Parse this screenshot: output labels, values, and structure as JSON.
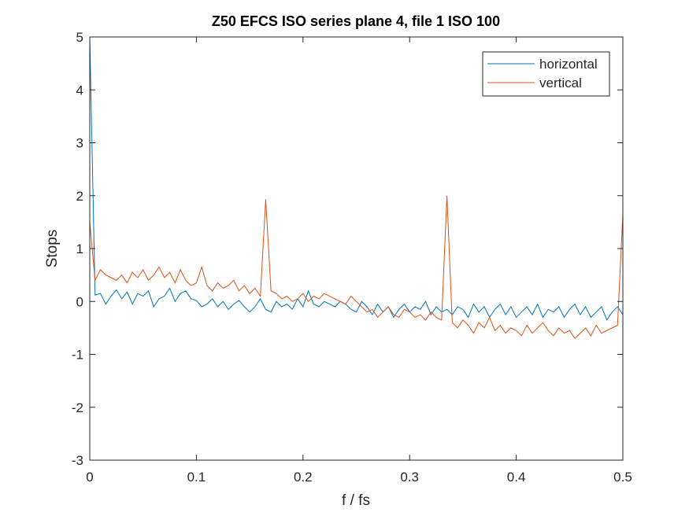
{
  "chart_data": {
    "type": "line",
    "title": "Z50 EFCS ISO series plane 4, file 1 ISO 100",
    "xlabel": "f / fs",
    "ylabel": "Stops",
    "xlim": [
      0,
      0.5
    ],
    "ylim": [
      -3,
      5
    ],
    "xticks": [
      0,
      0.1,
      0.2,
      0.3,
      0.4,
      0.5
    ],
    "yticks": [
      -3,
      -2,
      -1,
      0,
      1,
      2,
      3,
      4,
      5
    ],
    "grid": false,
    "legend": "northeast",
    "x": [
      0,
      0.005,
      0.01,
      0.015,
      0.02,
      0.025,
      0.03,
      0.035,
      0.04,
      0.045,
      0.05,
      0.055,
      0.06,
      0.065,
      0.07,
      0.075,
      0.08,
      0.085,
      0.09,
      0.095,
      0.1,
      0.105,
      0.11,
      0.115,
      0.12,
      0.125,
      0.13,
      0.135,
      0.14,
      0.145,
      0.15,
      0.155,
      0.16,
      0.165,
      0.17,
      0.175,
      0.18,
      0.185,
      0.19,
      0.195,
      0.2,
      0.205,
      0.21,
      0.215,
      0.22,
      0.225,
      0.23,
      0.235,
      0.24,
      0.245,
      0.25,
      0.255,
      0.26,
      0.265,
      0.27,
      0.275,
      0.28,
      0.285,
      0.29,
      0.295,
      0.3,
      0.305,
      0.31,
      0.315,
      0.32,
      0.325,
      0.33,
      0.335,
      0.34,
      0.345,
      0.35,
      0.355,
      0.36,
      0.365,
      0.37,
      0.375,
      0.38,
      0.385,
      0.39,
      0.395,
      0.4,
      0.405,
      0.41,
      0.415,
      0.42,
      0.425,
      0.43,
      0.435,
      0.44,
      0.445,
      0.45,
      0.455,
      0.46,
      0.465,
      0.47,
      0.475,
      0.48,
      0.485,
      0.49,
      0.495,
      0.5
    ],
    "series": [
      {
        "name": "horizontal",
        "color": "#0072BD",
        "values": [
          5,
          0.12,
          0.15,
          -0.05,
          0.1,
          0.22,
          0.05,
          0.18,
          -0.05,
          0.15,
          0.1,
          0.2,
          -0.1,
          0.05,
          0.1,
          0.25,
          0.0,
          0.15,
          0.2,
          0.05,
          0.02,
          -0.1,
          -0.05,
          0.05,
          -0.1,
          0.0,
          -0.15,
          -0.05,
          0.02,
          -0.1,
          -0.2,
          -0.1,
          0.05,
          -0.15,
          -0.2,
          0.0,
          -0.1,
          -0.05,
          -0.15,
          0.05,
          -0.1,
          0.2,
          -0.05,
          -0.1,
          0.0,
          -0.05,
          -0.1,
          0.0,
          -0.05,
          -0.15,
          -0.2,
          0.0,
          -0.1,
          -0.25,
          -0.05,
          -0.2,
          -0.1,
          -0.3,
          -0.15,
          -0.05,
          -0.2,
          -0.1,
          -0.15,
          0.0,
          -0.25,
          -0.1,
          -0.2,
          -0.15,
          -0.25,
          -0.1,
          -0.15,
          -0.3,
          -0.05,
          -0.2,
          -0.1,
          -0.3,
          -0.15,
          -0.05,
          -0.25,
          -0.1,
          -0.3,
          -0.2,
          -0.1,
          -0.25,
          -0.05,
          -0.3,
          -0.15,
          -0.2,
          -0.1,
          -0.3,
          -0.15,
          -0.05,
          -0.25,
          -0.1,
          -0.3,
          -0.2,
          -0.1,
          -0.35,
          -0.2,
          -0.1,
          -0.25
        ]
      },
      {
        "name": "vertical",
        "color": "#D95319",
        "values": [
          1.5,
          0.4,
          0.6,
          0.5,
          0.45,
          0.4,
          0.5,
          0.35,
          0.55,
          0.45,
          0.6,
          0.4,
          0.5,
          0.65,
          0.45,
          0.55,
          0.35,
          0.6,
          0.4,
          0.3,
          0.35,
          0.65,
          0.3,
          0.2,
          0.35,
          0.25,
          0.3,
          0.4,
          0.2,
          0.3,
          0.15,
          0.25,
          0.1,
          1.93,
          0.2,
          0.15,
          0.05,
          0.1,
          0.0,
          0.05,
          0.15,
          0.0,
          0.1,
          0.05,
          0.15,
          0.1,
          0.05,
          0.0,
          -0.05,
          0.1,
          0.0,
          -0.1,
          -0.2,
          -0.15,
          -0.3,
          -0.2,
          -0.1,
          -0.25,
          -0.3,
          -0.15,
          -0.2,
          -0.3,
          -0.25,
          -0.35,
          -0.2,
          -0.3,
          -0.35,
          2.0,
          -0.4,
          -0.5,
          -0.35,
          -0.45,
          -0.6,
          -0.4,
          -0.5,
          -0.3,
          -0.55,
          -0.45,
          -0.6,
          -0.5,
          -0.55,
          -0.65,
          -0.45,
          -0.6,
          -0.5,
          -0.4,
          -0.55,
          -0.65,
          -0.5,
          -0.6,
          -0.55,
          -0.7,
          -0.6,
          -0.5,
          -0.65,
          -0.45,
          -0.6,
          -0.55,
          -0.5,
          -0.45,
          1.65
        ]
      }
    ]
  }
}
